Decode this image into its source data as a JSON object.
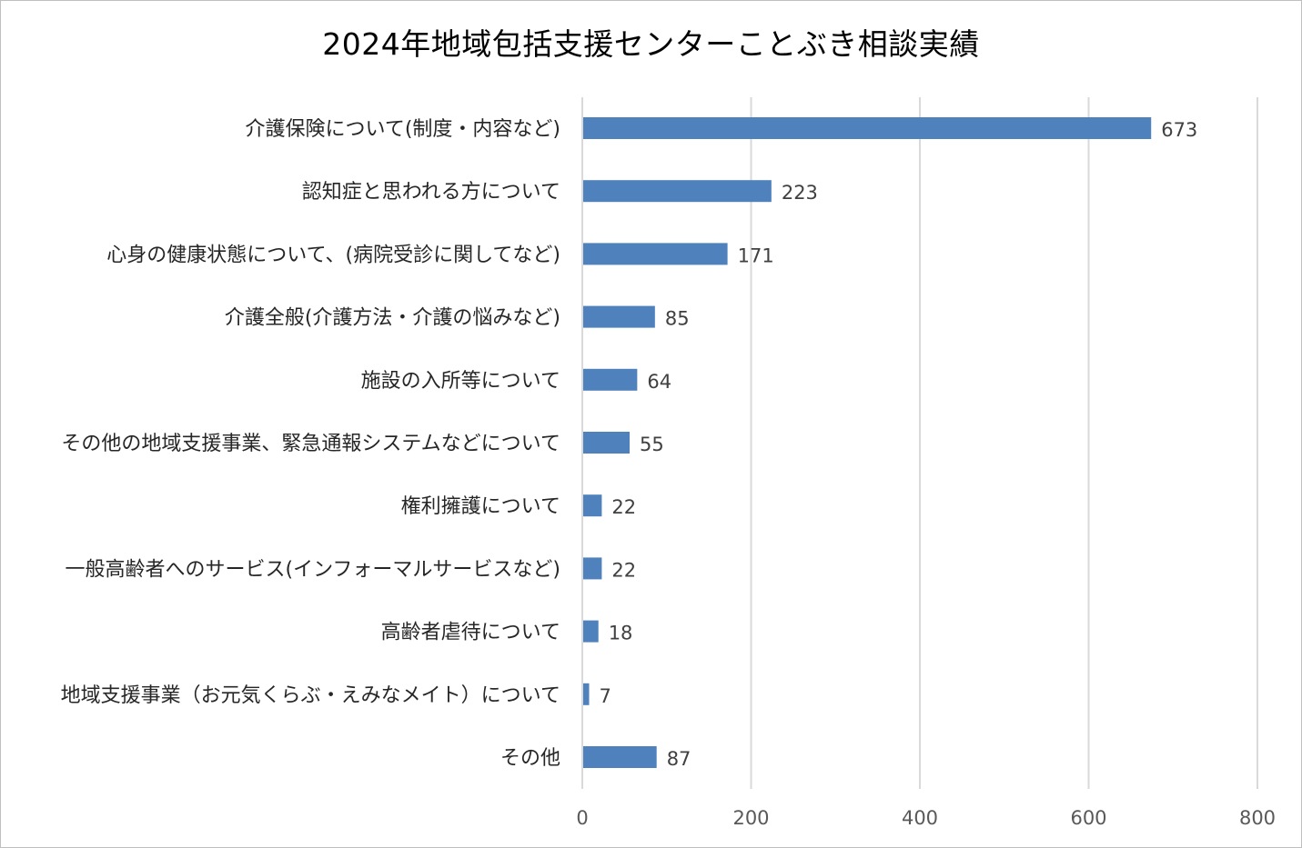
{
  "chart_data": {
    "type": "bar",
    "orientation": "horizontal",
    "title": "2024年地域包括支援センターことぶき相談実績",
    "categories": [
      "介護保険について(制度・内容など)",
      "認知症と思われる方について",
      "心身の健康状態について、(病院受診に関してなど)",
      "介護全般(介護方法・介護の悩みなど)",
      "施設の入所等について",
      "その他の地域支援事業、緊急通報システムなどについて",
      "権利擁護について",
      "一般高齢者へのサービス(インフォーマルサービスなど)",
      "高齢者虐待について",
      "地域支援事業（お元気くらぶ・えみなメイト）について",
      "その他"
    ],
    "values": [
      673,
      223,
      171,
      85,
      64,
      55,
      22,
      22,
      18,
      7,
      87
    ],
    "xlim": [
      0,
      800
    ],
    "xticks": [
      0,
      200,
      400,
      600,
      800
    ],
    "grid": "vertical",
    "legend": "none",
    "bar_color": "#4f81bd",
    "grid_color": "#d9d9d9"
  }
}
